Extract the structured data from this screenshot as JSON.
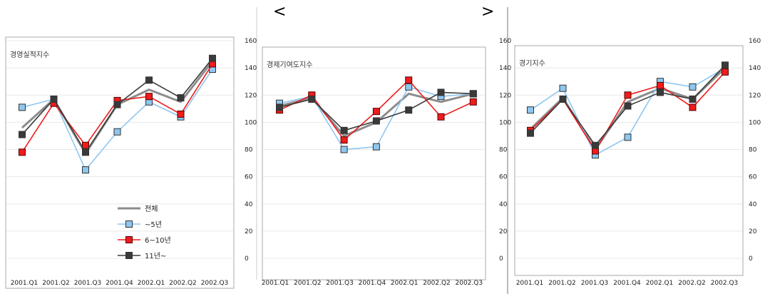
{
  "header": {
    "open_bracket": "<",
    "close_bracket": ">"
  },
  "colors": {
    "total": "#8c8c8c",
    "s1": "#8ec7f0",
    "s2": "#ee1c1c",
    "s3": "#3a3a3a",
    "grid": "#e8e8e8",
    "frame": "#a8a8a8"
  },
  "legend": [
    "전체",
    "~5년",
    "6~10년",
    "11년~"
  ],
  "chart_data": [
    {
      "type": "line",
      "title": "경영실적지수",
      "categories": [
        "2001.Q1",
        "2001.Q2",
        "2001.Q3",
        "2001.Q4",
        "2002.Q1",
        "2002.Q2",
        "2002.Q3"
      ],
      "yticks": [
        0,
        20,
        40,
        60,
        80,
        100,
        120,
        140,
        160
      ],
      "ylim": [
        0,
        160
      ],
      "grid": true,
      "legend_position": "bottom-center",
      "series": [
        {
          "name": "전체",
          "values": [
            96,
            117,
            77,
            113,
            124,
            115,
            145
          ]
        },
        {
          "name": "~5년",
          "values": [
            111,
            117,
            65,
            93,
            115,
            104,
            139
          ]
        },
        {
          "name": "6~10년",
          "values": [
            78,
            114,
            83,
            116,
            119,
            106,
            143
          ]
        },
        {
          "name": "11년~",
          "values": [
            91,
            117,
            78,
            113,
            131,
            118,
            147
          ]
        }
      ]
    },
    {
      "type": "line",
      "title": "경제기여도지수",
      "categories": [
        "2001.Q1",
        "2001.Q2",
        "2001.Q3",
        "2001.Q4",
        "2002.Q1",
        "2002.Q2",
        "2002.Q3"
      ],
      "yticks": [
        0,
        20,
        40,
        60,
        80,
        100,
        120,
        140,
        160
      ],
      "ylim": [
        0,
        160
      ],
      "grid": true,
      "series": [
        {
          "name": "전체",
          "values": [
            112,
            118,
            90,
            100,
            121,
            115,
            121
          ]
        },
        {
          "name": "~5년",
          "values": [
            114,
            119,
            80,
            82,
            126,
            119,
            121
          ]
        },
        {
          "name": "6~10년",
          "values": [
            109,
            120,
            87,
            108,
            131,
            104,
            115
          ]
        },
        {
          "name": "11년~",
          "values": [
            111,
            117,
            94,
            101,
            109,
            122,
            121
          ]
        }
      ]
    },
    {
      "type": "line",
      "title": "경기지수",
      "categories": [
        "2001.Q1",
        "2001.Q2",
        "2001.Q3",
        "2001.Q4",
        "2002.Q1",
        "2002.Q2",
        "2002.Q3"
      ],
      "yticks": [
        0,
        20,
        40,
        60,
        80,
        100,
        120,
        140,
        160
      ],
      "ylim": [
        0,
        160
      ],
      "grid": true,
      "series": [
        {
          "name": "전체",
          "values": [
            95,
            118,
            80,
            115,
            125,
            117,
            140
          ]
        },
        {
          "name": "~5년",
          "values": [
            109,
            125,
            76,
            89,
            130,
            126,
            140
          ]
        },
        {
          "name": "6~10년",
          "values": [
            94,
            117,
            79,
            120,
            127,
            111,
            137
          ]
        },
        {
          "name": "11년~",
          "values": [
            92,
            117,
            83,
            112,
            122,
            117,
            142
          ]
        }
      ]
    }
  ]
}
